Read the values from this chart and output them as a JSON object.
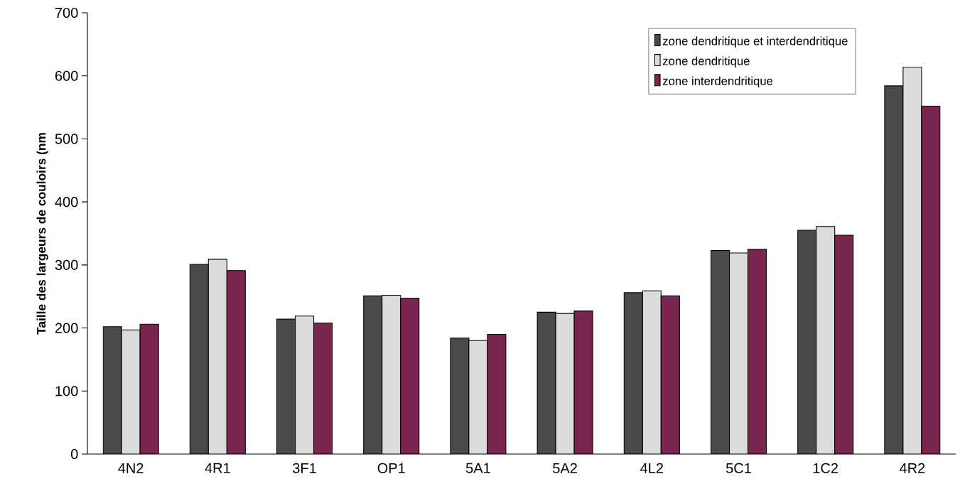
{
  "chart_data": {
    "type": "bar",
    "ylabel": "Taille des largeurs de couloirs (nm",
    "categories": [
      "4N2",
      "4R1",
      "3F1",
      "OP1",
      "5A1",
      "5A2",
      "4L2",
      "5C1",
      "1C2",
      "4R2"
    ],
    "series": [
      {
        "name": "zone dendritique et interdendritique",
        "color": "#4a4a4a",
        "values": [
          202,
          301,
          214,
          251,
          184,
          225,
          256,
          323,
          355,
          584
        ]
      },
      {
        "name": "zone dendritique",
        "color": "#dcdcdc",
        "values": [
          197,
          309,
          219,
          252,
          180,
          223,
          259,
          319,
          361,
          614
        ]
      },
      {
        "name": "zone interdendritique",
        "color": "#7a2450",
        "values": [
          206,
          291,
          208,
          247,
          190,
          227,
          251,
          325,
          347,
          552
        ]
      }
    ],
    "ylim": [
      0,
      700
    ],
    "yticks": [
      0,
      100,
      200,
      300,
      400,
      500,
      600,
      700
    ],
    "legend": "top right"
  }
}
